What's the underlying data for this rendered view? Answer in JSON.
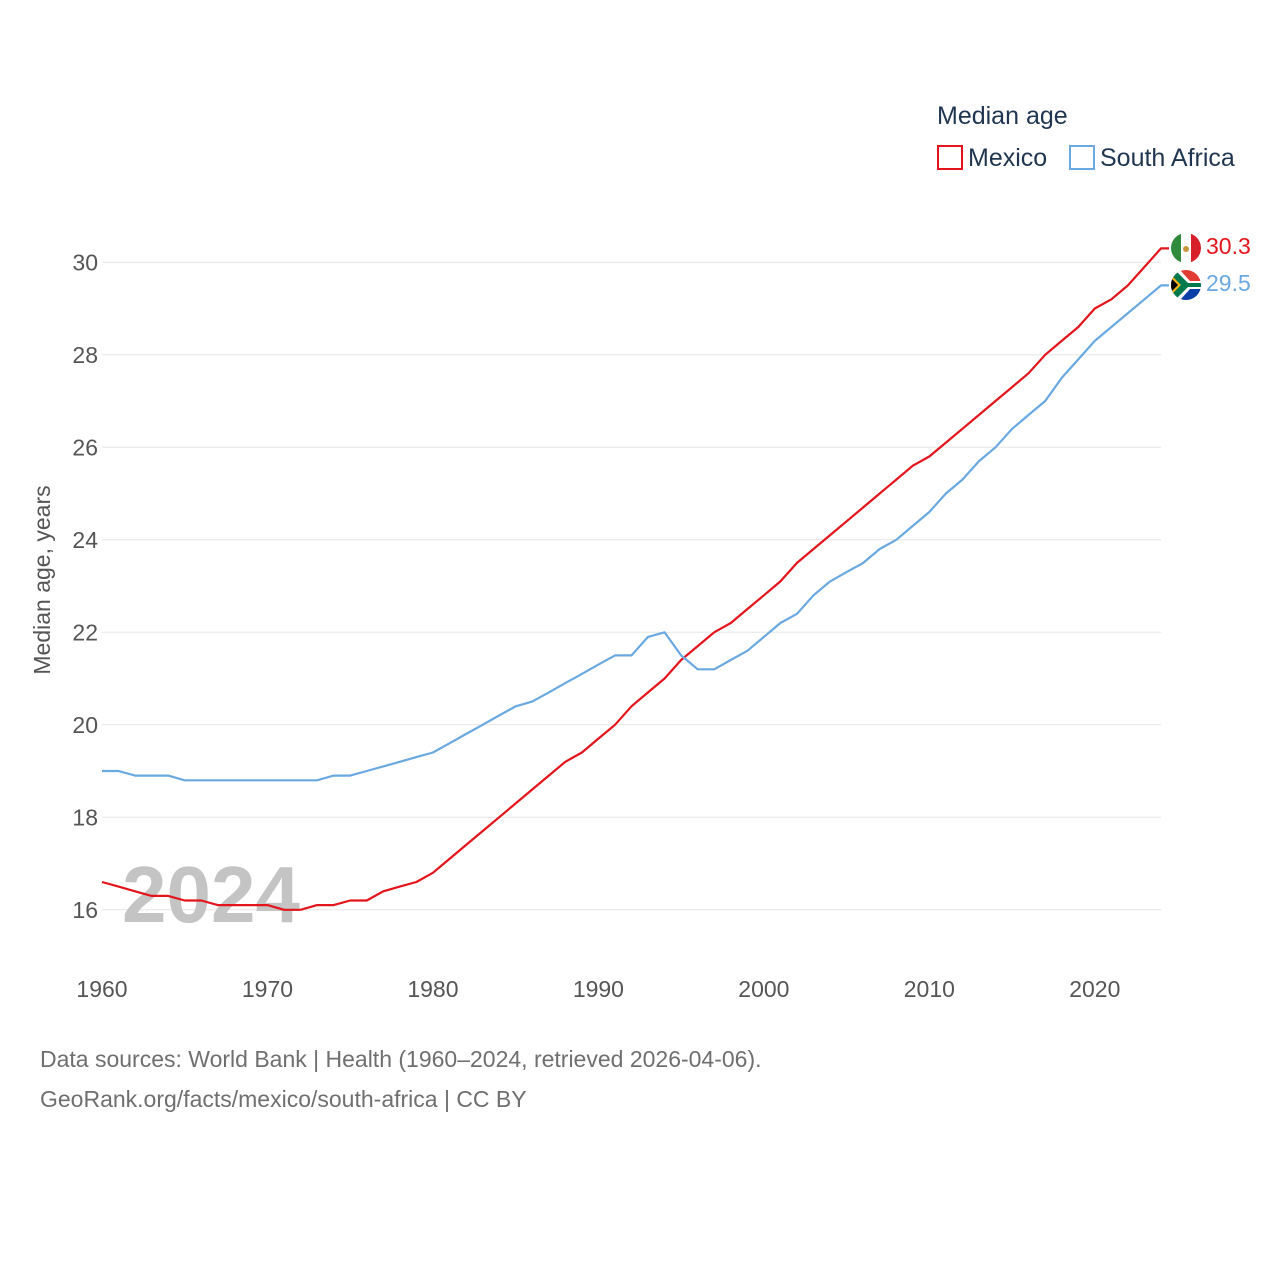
{
  "chart_data": {
    "type": "line",
    "legend_title": "Median age",
    "ylabel": "Median age, years",
    "xlabel": "",
    "xlim": [
      1960,
      2024
    ],
    "ylim": [
      15,
      31
    ],
    "x_ticks": [
      1960,
      1970,
      1980,
      1990,
      2000,
      2010,
      2020
    ],
    "y_ticks": [
      16,
      18,
      20,
      22,
      24,
      26,
      28,
      30
    ],
    "year_label": "2024",
    "x": [
      1960,
      1961,
      1962,
      1963,
      1964,
      1965,
      1966,
      1967,
      1968,
      1969,
      1970,
      1971,
      1972,
      1973,
      1974,
      1975,
      1976,
      1977,
      1978,
      1979,
      1980,
      1981,
      1982,
      1983,
      1984,
      1985,
      1986,
      1987,
      1988,
      1989,
      1990,
      1991,
      1992,
      1993,
      1994,
      1995,
      1996,
      1997,
      1998,
      1999,
      2000,
      2001,
      2002,
      2003,
      2004,
      2005,
      2006,
      2007,
      2008,
      2009,
      2010,
      2011,
      2012,
      2013,
      2014,
      2015,
      2016,
      2017,
      2018,
      2019,
      2020,
      2021,
      2022,
      2023,
      2024
    ],
    "series": [
      {
        "name": "Mexico",
        "color": "#e3141b",
        "end_label": "30.3",
        "flag": "mexico-flag",
        "values": [
          16.6,
          16.5,
          16.4,
          16.3,
          16.3,
          16.2,
          16.2,
          16.1,
          16.1,
          16.1,
          16.1,
          16.0,
          16.0,
          16.1,
          16.1,
          16.2,
          16.2,
          16.4,
          16.5,
          16.6,
          16.8,
          17.1,
          17.4,
          17.7,
          18.0,
          18.3,
          18.6,
          18.9,
          19.2,
          19.4,
          19.7,
          20.0,
          20.4,
          20.7,
          21.0,
          21.4,
          21.7,
          22.0,
          22.2,
          22.5,
          22.8,
          23.1,
          23.5,
          23.8,
          24.1,
          24.4,
          24.7,
          25.0,
          25.3,
          25.6,
          25.8,
          26.1,
          26.4,
          26.7,
          27.0,
          27.3,
          27.6,
          28.0,
          28.3,
          28.6,
          29.0,
          29.2,
          29.5,
          29.9,
          30.3
        ]
      },
      {
        "name": "South Africa",
        "color": "#6aa8e0",
        "end_label": "29.5",
        "flag": "south-africa-flag",
        "values": [
          19.0,
          19.0,
          18.9,
          18.9,
          18.9,
          18.8,
          18.8,
          18.8,
          18.8,
          18.8,
          18.8,
          18.8,
          18.8,
          18.8,
          18.9,
          18.9,
          19.0,
          19.1,
          19.2,
          19.3,
          19.4,
          19.6,
          19.8,
          20.0,
          20.2,
          20.4,
          20.5,
          20.7,
          20.9,
          21.1,
          21.3,
          21.5,
          21.5,
          21.9,
          22.0,
          21.5,
          21.2,
          21.2,
          21.4,
          21.6,
          21.9,
          22.2,
          22.4,
          22.8,
          23.1,
          23.3,
          23.5,
          23.8,
          24.0,
          24.3,
          24.6,
          25.0,
          25.3,
          25.7,
          26.0,
          26.4,
          26.7,
          27.0,
          27.5,
          27.9,
          28.3,
          28.6,
          28.9,
          29.2,
          29.5
        ]
      }
    ]
  },
  "footer": {
    "sources": "Data sources: World Bank | Health (1960–2024, retrieved 2026-04-06).",
    "credit": "GeoRank.org/facts/mexico/south-africa | CC BY"
  }
}
